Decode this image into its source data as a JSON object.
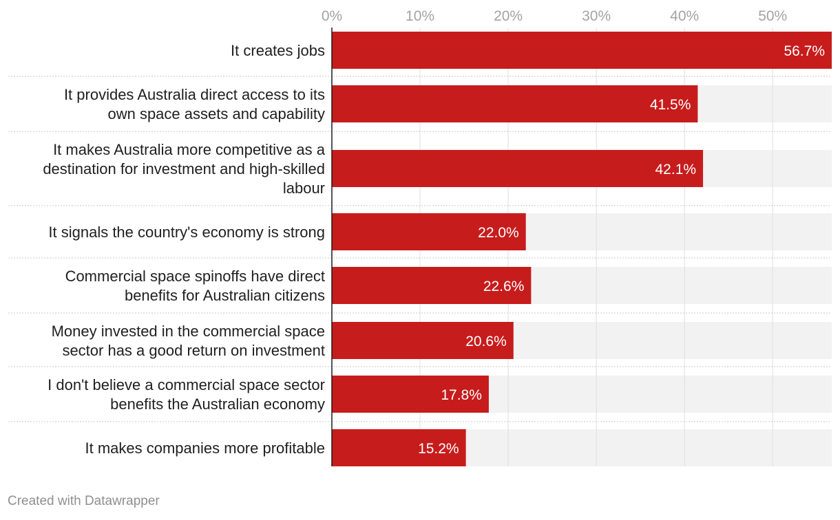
{
  "chart_data": {
    "type": "bar",
    "orientation": "horizontal",
    "title": "",
    "xlabel": "",
    "ylabel": "",
    "xlim": [
      0,
      56.7
    ],
    "ticks": [
      {
        "value": 0,
        "label": "0%"
      },
      {
        "value": 10,
        "label": "10%"
      },
      {
        "value": 20,
        "label": "20%"
      },
      {
        "value": 30,
        "label": "30%"
      },
      {
        "value": 40,
        "label": "40%"
      },
      {
        "value": 50,
        "label": "50%"
      }
    ],
    "grid": true,
    "bars": [
      {
        "category": [
          "It creates jobs"
        ],
        "value": 56.7,
        "label": "56.7%"
      },
      {
        "category": [
          "It provides Australia direct access to its",
          "own space assets and capability"
        ],
        "value": 41.5,
        "label": "41.5%"
      },
      {
        "category": [
          "It makes Australia more competitive as a",
          "destination for investment and high-skilled",
          "labour"
        ],
        "value": 42.1,
        "label": "42.1%"
      },
      {
        "category": [
          "It signals the country's economy is strong"
        ],
        "value": 22.0,
        "label": "22.0%"
      },
      {
        "category": [
          "Commercial space spinoffs have direct",
          "benefits for Australian citizens"
        ],
        "value": 22.6,
        "label": "22.6%"
      },
      {
        "category": [
          "Money invested in the commercial space",
          "sector has a good return on investment"
        ],
        "value": 20.6,
        "label": "20.6%"
      },
      {
        "category": [
          "I don't believe a commercial space sector",
          "benefits the Australian economy"
        ],
        "value": 17.8,
        "label": "17.8%"
      },
      {
        "category": [
          "It makes companies more profitable"
        ],
        "value": 15.2,
        "label": "15.2%"
      }
    ]
  },
  "colors": {
    "bar": "#c71c1c",
    "track": "#f2f2f2",
    "grid": "#dedede",
    "axis": "#1a1a1a",
    "separator": "#c8c8c8"
  },
  "footer": {
    "credit": "Created with Datawrapper"
  }
}
